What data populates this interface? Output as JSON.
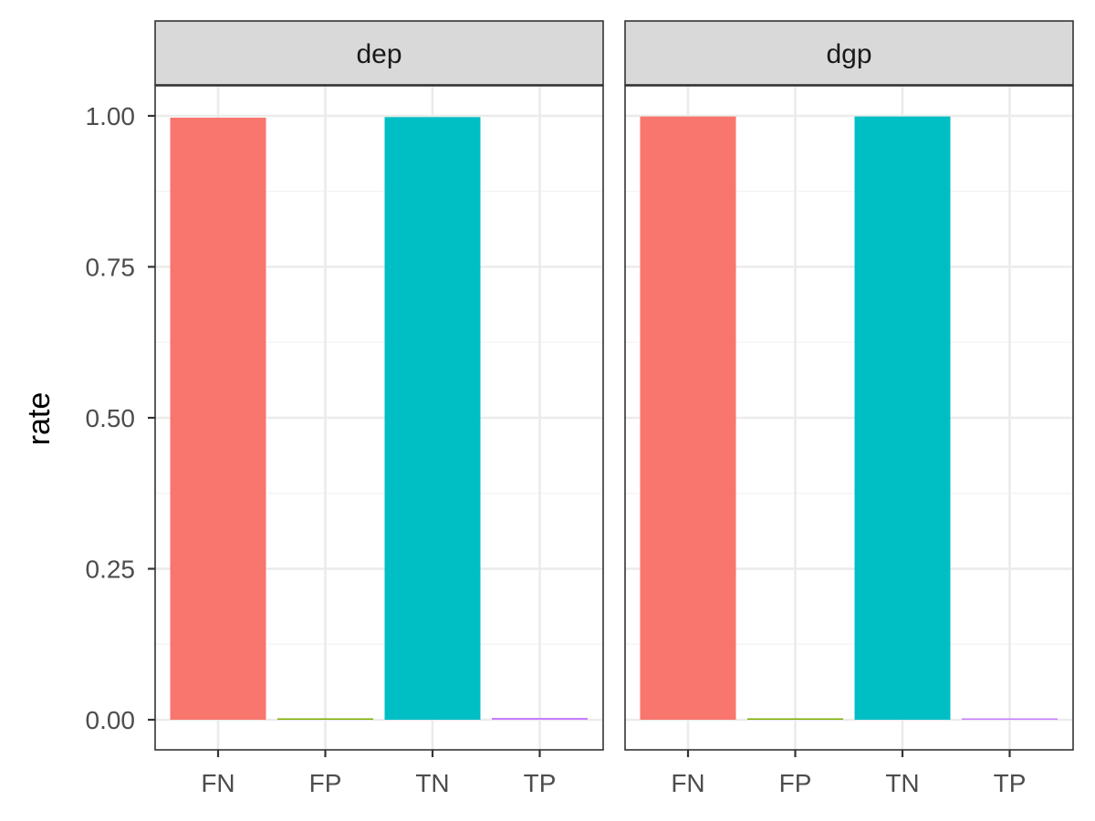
{
  "chart_data": {
    "type": "bar",
    "facet_layout": "two panels side by side, shared y axis",
    "ylabel": "rate",
    "xlabel": "",
    "ylim": [
      0,
      1.05
    ],
    "yticks": [
      "0.00",
      "0.25",
      "0.50",
      "0.75",
      "1.00"
    ],
    "grid": true,
    "legend": "none",
    "categories": [
      "FN",
      "FP",
      "TN",
      "TP"
    ],
    "colors": [
      "#F8766D",
      "#7CAE00",
      "#00BFC4",
      "#C77CFF"
    ],
    "panels": [
      {
        "name": "dep",
        "values": [
          0.997,
          0.001,
          0.998,
          0.003
        ]
      },
      {
        "name": "dgp",
        "values": [
          0.999,
          0.001,
          0.999,
          0.001
        ]
      }
    ]
  }
}
